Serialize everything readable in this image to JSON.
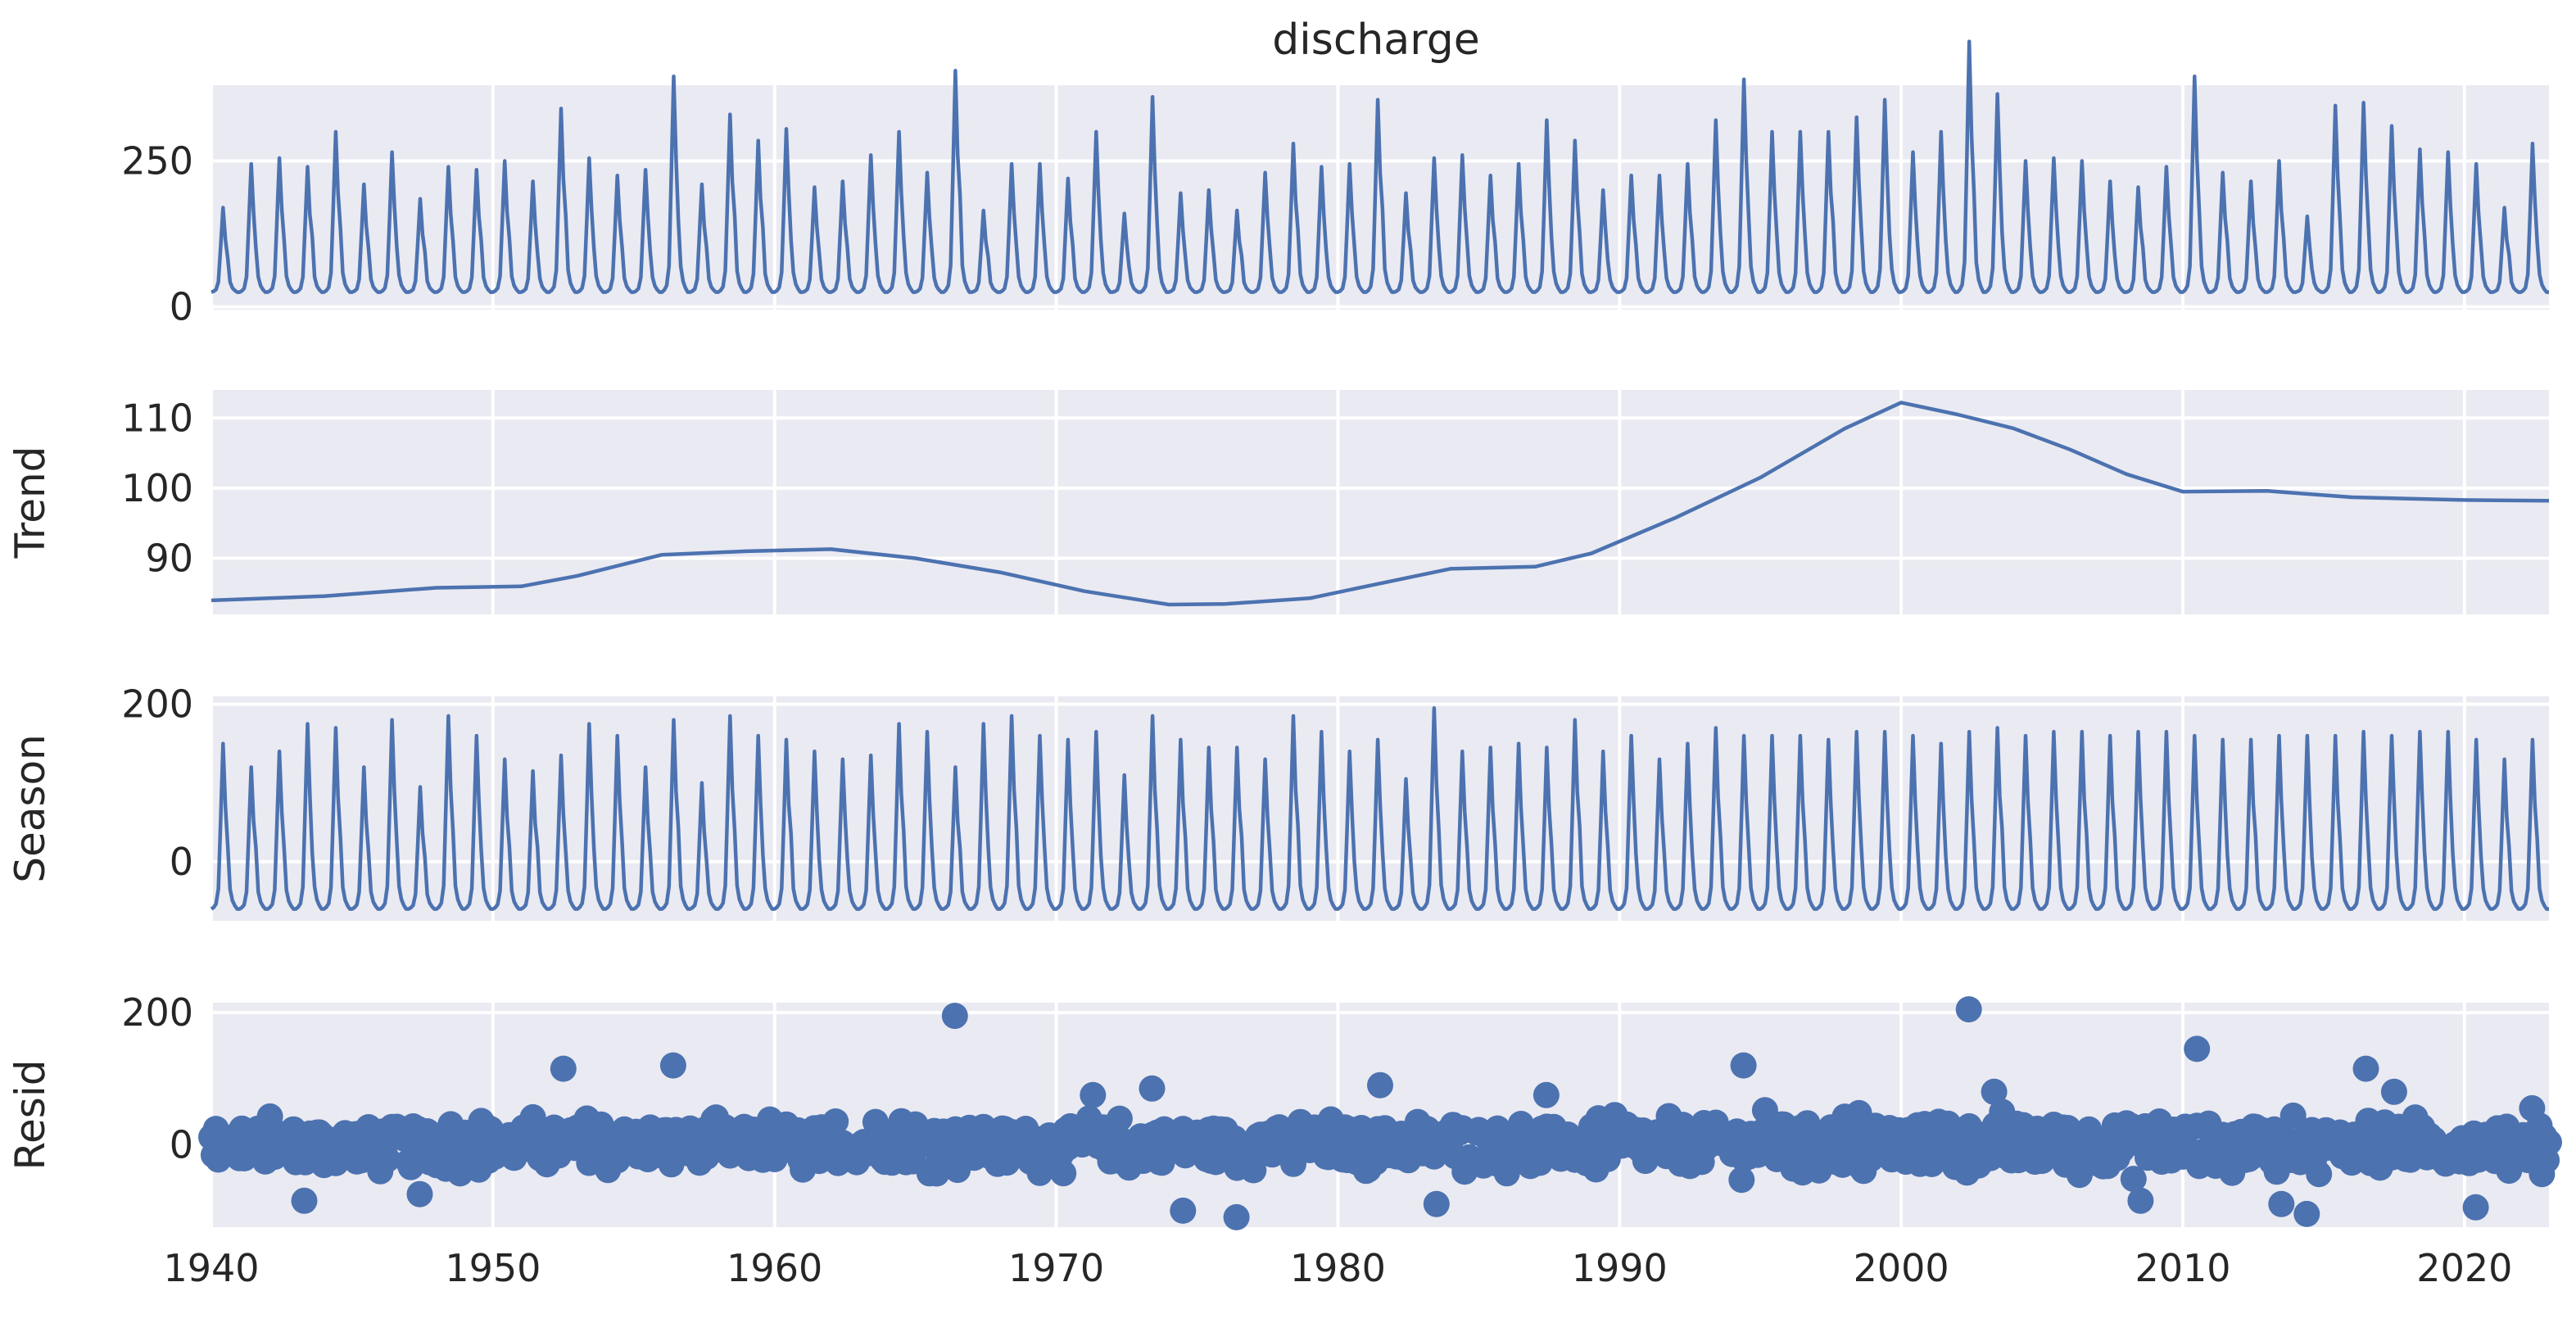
{
  "chart_data": {
    "type": "line",
    "title": "discharge",
    "x_range": [
      1940,
      2023
    ],
    "x_ticks": [
      1940,
      1950,
      1960,
      1970,
      1980,
      1990,
      2000,
      2010,
      2020
    ],
    "x_tick_labels": [
      "1940",
      "1950",
      "1960",
      "1970",
      "1980",
      "1990",
      "2000",
      "2010",
      "2020"
    ],
    "colors": {
      "series": "#4c72b0",
      "panel_background": "#eaeaf2",
      "grid": "#ffffff"
    },
    "grid": true,
    "panels": [
      {
        "id": "observed",
        "ylabel": "",
        "plot": "line",
        "ylim": [
          -5,
          380
        ],
        "y_ticks": [
          0,
          250
        ],
        "y_tick_labels": [
          "0",
          "250"
        ],
        "annual_peaks": [
          [
            1940,
            170
          ],
          [
            1941,
            245
          ],
          [
            1942,
            255
          ],
          [
            1943,
            240
          ],
          [
            1944,
            300
          ],
          [
            1945,
            210
          ],
          [
            1946,
            265
          ],
          [
            1947,
            185
          ],
          [
            1948,
            240
          ],
          [
            1949,
            235
          ],
          [
            1950,
            250
          ],
          [
            1951,
            215
          ],
          [
            1952,
            340
          ],
          [
            1953,
            255
          ],
          [
            1954,
            225
          ],
          [
            1955,
            235
          ],
          [
            1956,
            395
          ],
          [
            1957,
            210
          ],
          [
            1958,
            330
          ],
          [
            1959,
            285
          ],
          [
            1960,
            305
          ],
          [
            1961,
            205
          ],
          [
            1962,
            215
          ],
          [
            1963,
            260
          ],
          [
            1964,
            300
          ],
          [
            1965,
            230
          ],
          [
            1966,
            405
          ],
          [
            1967,
            165
          ],
          [
            1968,
            245
          ],
          [
            1969,
            245
          ],
          [
            1970,
            220
          ],
          [
            1971,
            300
          ],
          [
            1972,
            160
          ],
          [
            1973,
            360
          ],
          [
            1974,
            195
          ],
          [
            1975,
            200
          ],
          [
            1976,
            165
          ],
          [
            1977,
            230
          ],
          [
            1978,
            280
          ],
          [
            1979,
            240
          ],
          [
            1980,
            245
          ],
          [
            1981,
            355
          ],
          [
            1982,
            195
          ],
          [
            1983,
            255
          ],
          [
            1984,
            260
          ],
          [
            1985,
            225
          ],
          [
            1986,
            245
          ],
          [
            1987,
            320
          ],
          [
            1988,
            285
          ],
          [
            1989,
            200
          ],
          [
            1990,
            225
          ],
          [
            1991,
            225
          ],
          [
            1992,
            245
          ],
          [
            1993,
            320
          ],
          [
            1994,
            390
          ],
          [
            1995,
            300
          ],
          [
            1996,
            300
          ],
          [
            1997,
            300
          ],
          [
            1998,
            325
          ],
          [
            1999,
            355
          ],
          [
            2000,
            265
          ],
          [
            2001,
            300
          ],
          [
            2002,
            455
          ],
          [
            2003,
            365
          ],
          [
            2004,
            250
          ],
          [
            2005,
            255
          ],
          [
            2006,
            250
          ],
          [
            2007,
            215
          ],
          [
            2008,
            205
          ],
          [
            2009,
            240
          ],
          [
            2010,
            395
          ],
          [
            2011,
            230
          ],
          [
            2012,
            215
          ],
          [
            2013,
            250
          ],
          [
            2014,
            155
          ],
          [
            2015,
            345
          ],
          [
            2016,
            350
          ],
          [
            2017,
            310
          ],
          [
            2018,
            270
          ],
          [
            2019,
            265
          ],
          [
            2020,
            245
          ],
          [
            2021,
            170
          ],
          [
            2022,
            280
          ]
        ],
        "baseline": 25
      },
      {
        "id": "trend",
        "ylabel": "Trend",
        "plot": "line",
        "ylim": [
          82,
          114
        ],
        "y_ticks": [
          90,
          100,
          110
        ],
        "y_tick_labels": [
          "90",
          "100",
          "110"
        ],
        "x": [
          1940,
          1944,
          1948,
          1951,
          1953,
          1956,
          1959,
          1962,
          1965,
          1968,
          1971,
          1974,
          1976,
          1979,
          1981,
          1984,
          1987,
          1989,
          1992,
          1995,
          1998,
          2000,
          2002,
          2004,
          2006,
          2008,
          2010,
          2013,
          2016,
          2020,
          2023
        ],
        "values": [
          84,
          84.6,
          85.8,
          86,
          87.5,
          90.5,
          91,
          91.3,
          90,
          88,
          85.3,
          83.4,
          83.5,
          84.3,
          86,
          88.5,
          88.8,
          90.7,
          95.8,
          101.5,
          108.5,
          112.2,
          110.5,
          108.5,
          105.5,
          102,
          99.5,
          99.6,
          98.7,
          98.3,
          98.2
        ]
      },
      {
        "id": "season",
        "ylabel": "Season",
        "plot": "line",
        "ylim": [
          -75,
          210
        ],
        "y_ticks": [
          0,
          200
        ],
        "y_tick_labels": [
          "0",
          "200"
        ],
        "annual_peaks": [
          [
            1940,
            150
          ],
          [
            1941,
            120
          ],
          [
            1942,
            140
          ],
          [
            1943,
            175
          ],
          [
            1944,
            170
          ],
          [
            1945,
            120
          ],
          [
            1946,
            180
          ],
          [
            1947,
            95
          ],
          [
            1948,
            185
          ],
          [
            1949,
            160
          ],
          [
            1950,
            130
          ],
          [
            1951,
            115
          ],
          [
            1952,
            135
          ],
          [
            1953,
            175
          ],
          [
            1954,
            160
          ],
          [
            1955,
            120
          ],
          [
            1956,
            180
          ],
          [
            1957,
            100
          ],
          [
            1958,
            185
          ],
          [
            1959,
            160
          ],
          [
            1960,
            155
          ],
          [
            1961,
            140
          ],
          [
            1962,
            130
          ],
          [
            1963,
            135
          ],
          [
            1964,
            175
          ],
          [
            1965,
            165
          ],
          [
            1966,
            120
          ],
          [
            1967,
            175
          ],
          [
            1968,
            185
          ],
          [
            1969,
            160
          ],
          [
            1970,
            155
          ],
          [
            1971,
            165
          ],
          [
            1972,
            110
          ],
          [
            1973,
            185
          ],
          [
            1974,
            155
          ],
          [
            1975,
            145
          ],
          [
            1976,
            145
          ],
          [
            1977,
            130
          ],
          [
            1978,
            185
          ],
          [
            1979,
            165
          ],
          [
            1980,
            140
          ],
          [
            1981,
            155
          ],
          [
            1982,
            105
          ],
          [
            1983,
            195
          ],
          [
            1984,
            140
          ],
          [
            1985,
            145
          ],
          [
            1986,
            150
          ],
          [
            1987,
            145
          ],
          [
            1988,
            180
          ],
          [
            1989,
            140
          ],
          [
            1990,
            160
          ],
          [
            1991,
            130
          ],
          [
            1992,
            150
          ],
          [
            1993,
            170
          ],
          [
            1994,
            160
          ],
          [
            1995,
            160
          ],
          [
            1996,
            160
          ],
          [
            1997,
            155
          ],
          [
            1998,
            165
          ],
          [
            1999,
            165
          ],
          [
            2000,
            160
          ],
          [
            2001,
            150
          ],
          [
            2002,
            165
          ],
          [
            2003,
            170
          ],
          [
            2004,
            160
          ],
          [
            2005,
            165
          ],
          [
            2006,
            165
          ],
          [
            2007,
            160
          ],
          [
            2008,
            165
          ],
          [
            2009,
            165
          ],
          [
            2010,
            160
          ],
          [
            2011,
            155
          ],
          [
            2012,
            155
          ],
          [
            2013,
            160
          ],
          [
            2014,
            160
          ],
          [
            2015,
            160
          ],
          [
            2016,
            165
          ],
          [
            2017,
            160
          ],
          [
            2018,
            165
          ],
          [
            2019,
            165
          ],
          [
            2020,
            155
          ],
          [
            2021,
            130
          ],
          [
            2022,
            155
          ]
        ],
        "baseline": -60
      },
      {
        "id": "resid",
        "ylabel": "Resid",
        "plot": "scatter",
        "ylim": [
          -125,
          215
        ],
        "y_ticks": [
          0,
          200
        ],
        "y_tick_labels": [
          "0",
          "200"
        ],
        "outliers": [
          [
            1943.3,
            -85
          ],
          [
            1947.4,
            -75
          ],
          [
            1952.5,
            115
          ],
          [
            1956.4,
            120
          ],
          [
            1966.4,
            195
          ],
          [
            1971.3,
            75
          ],
          [
            1973.4,
            85
          ],
          [
            1974.5,
            -100
          ],
          [
            1976.4,
            -110
          ],
          [
            1981.5,
            90
          ],
          [
            1983.5,
            -90
          ],
          [
            1987.4,
            75
          ],
          [
            1994.4,
            120
          ],
          [
            2002.4,
            205
          ],
          [
            2003.3,
            80
          ],
          [
            2008.5,
            -85
          ],
          [
            2010.5,
            145
          ],
          [
            2013.5,
            -90
          ],
          [
            2014.4,
            -105
          ],
          [
            2016.5,
            115
          ],
          [
            2017.5,
            80
          ],
          [
            2020.4,
            -95
          ],
          [
            2022.4,
            55
          ]
        ],
        "typical_amplitude": 28
      }
    ]
  }
}
